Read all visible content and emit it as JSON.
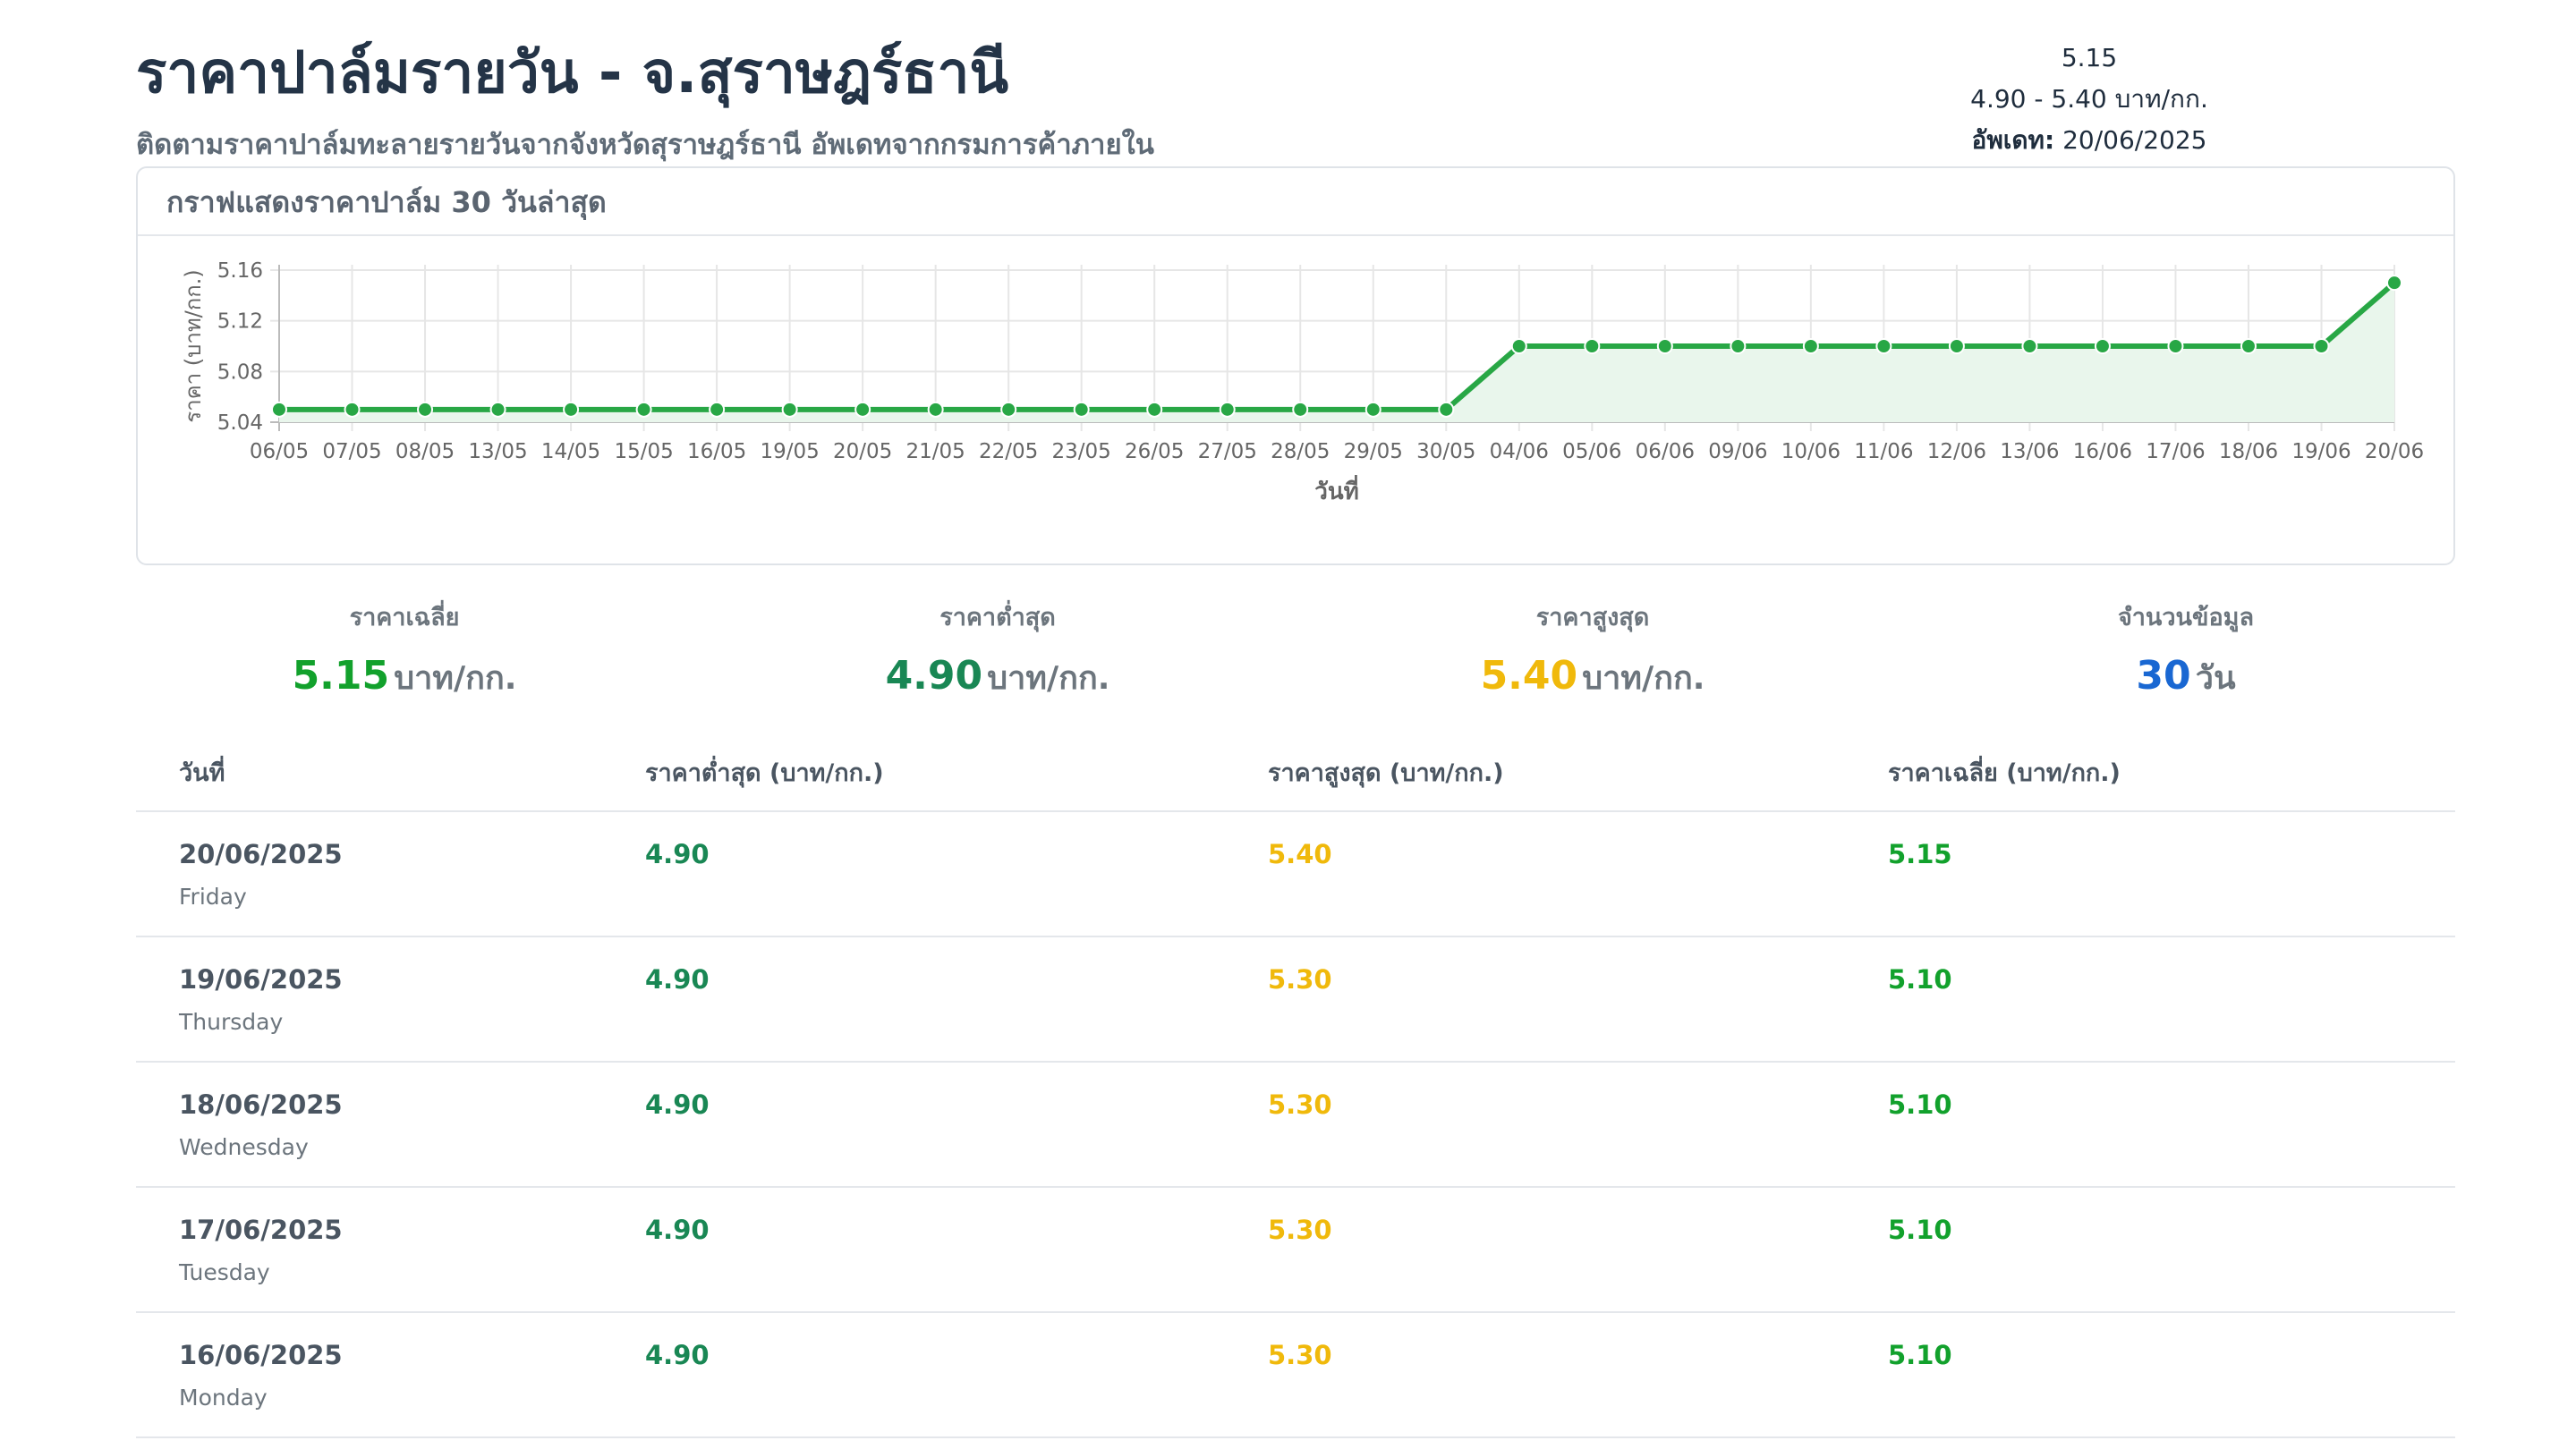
{
  "header": {
    "title": "ราคาปาล์มรายวัน - จ.สุราษฎร์ธานี",
    "subtitle": "ติดตามราคาปาล์มทะลายรายวันจากจังหวัดสุราษฎร์ธานี อัพเดทจากกรมการค้าภายใน",
    "price": "5.15",
    "range": "4.90 - 5.40 บาท/กก.",
    "updated_label": "อัพเดท:",
    "updated_date": "20/06/2025"
  },
  "chart_card": {
    "title": "กราฟแสดงราคาปาล์ม 30 วันล่าสุด"
  },
  "chart_data": {
    "type": "line",
    "title": "",
    "xlabel": "วันที่",
    "ylabel": "ราคา (บาท/กก.)",
    "ylim": [
      5.04,
      5.16
    ],
    "yticks": [
      "5.16",
      "5.12",
      "5.08",
      "5.04"
    ],
    "grid": true,
    "categories": [
      "06/05",
      "07/05",
      "08/05",
      "13/05",
      "14/05",
      "15/05",
      "16/05",
      "19/05",
      "20/05",
      "21/05",
      "22/05",
      "23/05",
      "26/05",
      "27/05",
      "28/05",
      "29/05",
      "30/05",
      "04/06",
      "05/06",
      "06/06",
      "09/06",
      "10/06",
      "11/06",
      "12/06",
      "13/06",
      "16/06",
      "17/06",
      "18/06",
      "19/06",
      "20/06"
    ],
    "series": [
      {
        "values": [
          5.05,
          5.05,
          5.05,
          5.05,
          5.05,
          5.05,
          5.05,
          5.05,
          5.05,
          5.05,
          5.05,
          5.05,
          5.05,
          5.05,
          5.05,
          5.05,
          5.05,
          5.1,
          5.1,
          5.1,
          5.1,
          5.1,
          5.1,
          5.1,
          5.1,
          5.1,
          5.1,
          5.1,
          5.1,
          5.15
        ],
        "color": "#28a745",
        "fill": "#e9f6ec"
      }
    ]
  },
  "stats": {
    "avg": {
      "label": "ราคาเฉลี่ย",
      "value": "5.15",
      "unit": "บาท/กก."
    },
    "min": {
      "label": "ราคาต่ำสุด",
      "value": "4.90",
      "unit": "บาท/กก."
    },
    "max": {
      "label": "ราคาสูงสุด",
      "value": "5.40",
      "unit": "บาท/กก."
    },
    "count": {
      "label": "จำนวนข้อมูล",
      "value": "30",
      "unit": "วัน"
    }
  },
  "table": {
    "headers": {
      "date": "วันที่",
      "min": "ราคาต่ำสุด (บาท/กก.)",
      "max": "ราคาสูงสุด (บาท/กก.)",
      "avg": "ราคาเฉลี่ย (บาท/กก.)"
    },
    "rows": [
      {
        "date": "20/06/2025",
        "day": "Friday",
        "min": "4.90",
        "max": "5.40",
        "avg": "5.15"
      },
      {
        "date": "19/06/2025",
        "day": "Thursday",
        "min": "4.90",
        "max": "5.30",
        "avg": "5.10"
      },
      {
        "date": "18/06/2025",
        "day": "Wednesday",
        "min": "4.90",
        "max": "5.30",
        "avg": "5.10"
      },
      {
        "date": "17/06/2025",
        "day": "Tuesday",
        "min": "4.90",
        "max": "5.30",
        "avg": "5.10"
      },
      {
        "date": "16/06/2025",
        "day": "Monday",
        "min": "4.90",
        "max": "5.30",
        "avg": "5.10"
      }
    ]
  }
}
